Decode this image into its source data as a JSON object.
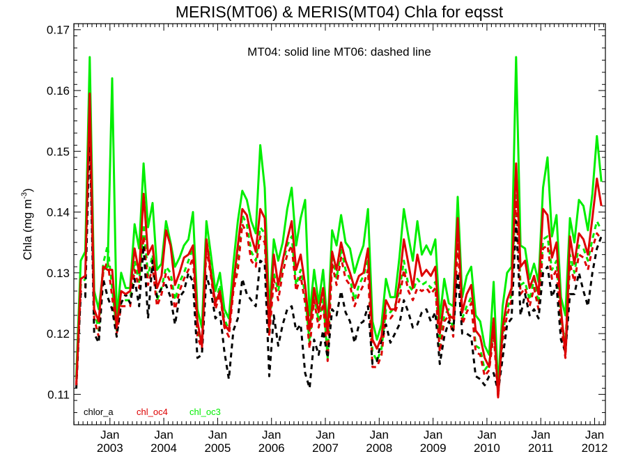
{
  "chart_data": {
    "type": "line",
    "title": "MERIS(MT06) & MERIS(MT04)  Chla for eqsst",
    "xlabel": "",
    "ylabel": "Chla (mg m",
    "ylabel_sup": "-3",
    "ylabel_close": ")",
    "annotation": "MT04: solid line   MT06: dashed line",
    "ylim": [
      0.105,
      0.171
    ],
    "yticks": [
      0.11,
      0.12,
      0.13,
      0.14,
      0.15,
      0.16,
      0.17
    ],
    "ytick_labels": [
      "0.11",
      "0.12",
      "0.13",
      "0.14",
      "0.15",
      "0.16",
      "0.17"
    ],
    "xlim": [
      2002.33,
      2012.2
    ],
    "xticks": [
      {
        "x": 2003.0,
        "month": "Jan",
        "year": "2003"
      },
      {
        "x": 2004.0,
        "month": "Jan",
        "year": "2004"
      },
      {
        "x": 2005.0,
        "month": "Jan",
        "year": "2005"
      },
      {
        "x": 2006.0,
        "month": "Jan",
        "year": "2006"
      },
      {
        "x": 2007.0,
        "month": "Jan",
        "year": "2007"
      },
      {
        "x": 2008.0,
        "month": "Jan",
        "year": "2008"
      },
      {
        "x": 2009.0,
        "month": "Jan",
        "year": "2009"
      },
      {
        "x": 2010.0,
        "month": "Jan",
        "year": "2010"
      },
      {
        "x": 2011.0,
        "month": "Jan",
        "year": "2011"
      },
      {
        "x": 2012.0,
        "month": "Jan",
        "year": "2012"
      }
    ],
    "x": [
      2002.375,
      2002.458,
      2002.542,
      2002.625,
      2002.708,
      2002.792,
      2002.875,
      2002.958,
      2003.042,
      2003.125,
      2003.208,
      2003.292,
      2003.375,
      2003.458,
      2003.542,
      2003.625,
      2003.708,
      2003.792,
      2003.875,
      2003.958,
      2004.042,
      2004.125,
      2004.208,
      2004.292,
      2004.375,
      2004.458,
      2004.542,
      2004.625,
      2004.708,
      2004.792,
      2004.875,
      2004.958,
      2005.042,
      2005.125,
      2005.208,
      2005.292,
      2005.375,
      2005.458,
      2005.542,
      2005.625,
      2005.708,
      2005.792,
      2005.875,
      2005.958,
      2006.042,
      2006.125,
      2006.208,
      2006.292,
      2006.375,
      2006.458,
      2006.542,
      2006.625,
      2006.708,
      2006.792,
      2006.875,
      2006.958,
      2007.042,
      2007.125,
      2007.208,
      2007.292,
      2007.375,
      2007.458,
      2007.542,
      2007.625,
      2007.708,
      2007.792,
      2007.875,
      2007.958,
      2008.042,
      2008.125,
      2008.208,
      2008.292,
      2008.375,
      2008.458,
      2008.542,
      2008.625,
      2008.708,
      2008.792,
      2008.875,
      2008.958,
      2009.042,
      2009.125,
      2009.208,
      2009.292,
      2009.375,
      2009.458,
      2009.542,
      2009.625,
      2009.708,
      2009.792,
      2009.875,
      2009.958,
      2010.042,
      2010.125,
      2010.208,
      2010.292,
      2010.375,
      2010.458,
      2010.542,
      2010.625,
      2010.708,
      2010.792,
      2010.875,
      2010.958,
      2011.042,
      2011.125,
      2011.208,
      2011.292,
      2011.375,
      2011.458,
      2011.542,
      2011.625,
      2011.708,
      2011.792,
      2011.875,
      2011.958,
      2012.042,
      2012.125
    ],
    "series": [
      {
        "name": "chl_oc3",
        "line": "solid",
        "color": "#00ee00",
        "values": [
          0.113,
          0.132,
          0.1335,
          0.1655,
          0.127,
          0.124,
          0.1305,
          0.131,
          0.162,
          0.1225,
          0.13,
          0.1275,
          0.1275,
          0.138,
          0.134,
          0.148,
          0.1375,
          0.1415,
          0.1305,
          0.1315,
          0.1385,
          0.135,
          0.131,
          0.1325,
          0.1345,
          0.1355,
          0.14,
          0.124,
          0.121,
          0.1385,
          0.133,
          0.127,
          0.13,
          0.124,
          0.1225,
          0.1315,
          0.1385,
          0.1435,
          0.142,
          0.1385,
          0.1365,
          0.151,
          0.144,
          0.1235,
          0.1355,
          0.132,
          0.135,
          0.1405,
          0.144,
          0.1345,
          0.139,
          0.142,
          0.123,
          0.1305,
          0.125,
          0.1305,
          0.121,
          0.137,
          0.1345,
          0.1395,
          0.135,
          0.134,
          0.13,
          0.1325,
          0.1345,
          0.1405,
          0.122,
          0.119,
          0.1215,
          0.129,
          0.126,
          0.126,
          0.1325,
          0.1405,
          0.136,
          0.132,
          0.1385,
          0.133,
          0.1345,
          0.133,
          0.1355,
          0.1225,
          0.129,
          0.125,
          0.1245,
          0.1425,
          0.126,
          0.1295,
          0.131,
          0.123,
          0.122,
          0.118,
          0.1165,
          0.1285,
          0.111,
          0.1245,
          0.13,
          0.131,
          0.1655,
          0.1345,
          0.134,
          0.129,
          0.1315,
          0.1285,
          0.144,
          0.149,
          0.136,
          0.1395,
          0.126,
          0.123,
          0.139,
          0.135,
          0.142,
          0.141,
          0.137,
          0.143,
          0.1525,
          0.145
        ]
      },
      {
        "name": "chl_oc4",
        "line": "solid",
        "color": "#dd0000",
        "values": [
          0.1115,
          0.129,
          0.1295,
          0.1595,
          0.124,
          0.122,
          0.131,
          0.1305,
          0.1305,
          0.121,
          0.127,
          0.1265,
          0.127,
          0.134,
          0.13,
          0.143,
          0.133,
          0.1345,
          0.1275,
          0.1295,
          0.137,
          0.1345,
          0.128,
          0.13,
          0.1325,
          0.133,
          0.1345,
          0.122,
          0.118,
          0.1355,
          0.13,
          0.125,
          0.127,
          0.1215,
          0.1205,
          0.128,
          0.1345,
          0.1405,
          0.1395,
          0.136,
          0.1335,
          0.1405,
          0.139,
          0.121,
          0.133,
          0.128,
          0.132,
          0.1355,
          0.1385,
          0.1305,
          0.133,
          0.128,
          0.1205,
          0.1275,
          0.1235,
          0.1275,
          0.12,
          0.1335,
          0.1305,
          0.135,
          0.132,
          0.13,
          0.1275,
          0.1295,
          0.13,
          0.134,
          0.119,
          0.1175,
          0.1195,
          0.1255,
          0.124,
          0.124,
          0.1285,
          0.1355,
          0.1315,
          0.1275,
          0.133,
          0.1295,
          0.1305,
          0.1295,
          0.131,
          0.12,
          0.1255,
          0.123,
          0.1225,
          0.139,
          0.1235,
          0.1265,
          0.128,
          0.1205,
          0.1195,
          0.116,
          0.1145,
          0.1225,
          0.1095,
          0.121,
          0.1255,
          0.1275,
          0.148,
          0.131,
          0.132,
          0.1275,
          0.1295,
          0.1265,
          0.1405,
          0.1395,
          0.1325,
          0.135,
          0.124,
          0.1165,
          0.136,
          0.1315,
          0.1365,
          0.1355,
          0.133,
          0.139,
          0.1455,
          0.141
        ]
      },
      {
        "name": "chl_oc3 (MT06)",
        "line": "dashed",
        "color": "#00ee00",
        "values": [
          0.1125,
          0.128,
          0.129,
          0.156,
          0.124,
          0.1205,
          0.1315,
          0.1345,
          0.1275,
          0.1205,
          0.1255,
          0.1255,
          0.1255,
          0.132,
          0.1285,
          0.138,
          0.1295,
          0.133,
          0.1255,
          0.1275,
          0.131,
          0.13,
          0.1255,
          0.1285,
          0.13,
          0.132,
          0.134,
          0.1205,
          0.1185,
          0.1355,
          0.131,
          0.125,
          0.128,
          0.1225,
          0.1205,
          0.1285,
          0.132,
          0.1395,
          0.138,
          0.1335,
          0.132,
          0.1375,
          0.1365,
          0.1205,
          0.13,
          0.127,
          0.1315,
          0.1345,
          0.136,
          0.128,
          0.1305,
          0.1265,
          0.1185,
          0.1265,
          0.122,
          0.126,
          0.116,
          0.133,
          0.129,
          0.134,
          0.1305,
          0.129,
          0.1255,
          0.128,
          0.1295,
          0.132,
          0.117,
          0.1155,
          0.1175,
          0.124,
          0.1235,
          0.1245,
          0.127,
          0.132,
          0.128,
          0.127,
          0.129,
          0.128,
          0.1285,
          0.1275,
          0.1285,
          0.118,
          0.123,
          0.124,
          0.1205,
          0.1365,
          0.1225,
          0.1245,
          0.126,
          0.118,
          0.1175,
          0.114,
          0.115,
          0.121,
          0.11,
          0.12,
          0.124,
          0.1265,
          0.144,
          0.128,
          0.1285,
          0.1255,
          0.129,
          0.125,
          0.1355,
          0.136,
          0.1305,
          0.132,
          0.1225,
          0.1185,
          0.133,
          0.13,
          0.1345,
          0.134,
          0.132,
          0.1355,
          0.1385,
          0.137
        ]
      },
      {
        "name": "chl_oc4 (MT06)",
        "line": "dashed",
        "color": "#dd0000",
        "values": [
          0.1115,
          0.127,
          0.1275,
          0.1535,
          0.1225,
          0.1195,
          0.13,
          0.132,
          0.126,
          0.12,
          0.1245,
          0.1245,
          0.1245,
          0.1305,
          0.1275,
          0.136,
          0.128,
          0.131,
          0.1245,
          0.1265,
          0.13,
          0.1285,
          0.124,
          0.127,
          0.129,
          0.1305,
          0.1325,
          0.1195,
          0.1175,
          0.134,
          0.1295,
          0.124,
          0.1265,
          0.121,
          0.1195,
          0.127,
          0.1305,
          0.138,
          0.1365,
          0.132,
          0.131,
          0.136,
          0.135,
          0.1195,
          0.129,
          0.1255,
          0.13,
          0.133,
          0.1345,
          0.127,
          0.1295,
          0.125,
          0.1175,
          0.1255,
          0.121,
          0.125,
          0.1155,
          0.1315,
          0.128,
          0.1325,
          0.129,
          0.128,
          0.1245,
          0.1265,
          0.128,
          0.1305,
          0.1145,
          0.1145,
          0.1165,
          0.123,
          0.1225,
          0.1235,
          0.1255,
          0.1305,
          0.127,
          0.1255,
          0.1275,
          0.127,
          0.1275,
          0.1265,
          0.1275,
          0.117,
          0.122,
          0.123,
          0.1195,
          0.135,
          0.1215,
          0.1235,
          0.125,
          0.117,
          0.1165,
          0.113,
          0.114,
          0.12,
          0.1095,
          0.119,
          0.123,
          0.1255,
          0.142,
          0.1265,
          0.1275,
          0.1245,
          0.1275,
          0.124,
          0.134,
          0.1345,
          0.129,
          0.1305,
          0.1215,
          0.116,
          0.1315,
          0.1285,
          0.133,
          0.1325,
          0.1305,
          0.134,
          0.1365,
          0.1355
        ]
      },
      {
        "name": "chlor_a (MT06)",
        "line": "dashed",
        "color": "#000000",
        "values": [
          0.111,
          0.1265,
          0.126,
          0.154,
          0.12,
          0.1185,
          0.129,
          0.126,
          0.124,
          0.1195,
          0.125,
          0.1265,
          0.125,
          0.129,
          0.1245,
          0.1345,
          0.1225,
          0.132,
          0.126,
          0.1275,
          0.128,
          0.126,
          0.1215,
          0.126,
          0.127,
          0.13,
          0.1285,
          0.116,
          0.1165,
          0.1295,
          0.127,
          0.1225,
          0.1235,
          0.117,
          0.1125,
          0.1205,
          0.1225,
          0.129,
          0.1265,
          0.1255,
          0.1245,
          0.132,
          0.1315,
          0.113,
          0.123,
          0.118,
          0.1215,
          0.124,
          0.1245,
          0.1205,
          0.1215,
          0.1135,
          0.111,
          0.119,
          0.1165,
          0.1205,
          0.116,
          0.124,
          0.123,
          0.127,
          0.1235,
          0.122,
          0.1185,
          0.1215,
          0.122,
          0.1245,
          0.115,
          0.1155,
          0.119,
          0.1215,
          0.1185,
          0.12,
          0.1215,
          0.1255,
          0.1235,
          0.121,
          0.1215,
          0.1235,
          0.124,
          0.122,
          0.1235,
          0.115,
          0.1195,
          0.122,
          0.1205,
          0.13,
          0.12,
          0.12,
          0.1195,
          0.113,
          0.1125,
          0.1115,
          0.113,
          0.1135,
          0.1105,
          0.116,
          0.1215,
          0.1225,
          0.1385,
          0.123,
          0.1265,
          0.123,
          0.124,
          0.1225,
          0.13,
          0.131,
          0.126,
          0.128,
          0.119,
          0.117,
          0.1265,
          0.1265,
          0.13,
          0.127,
          0.1245,
          0.13,
          0.134,
          0.136
        ]
      }
    ],
    "legend": [
      {
        "label": "chlor_a",
        "color": "#000000"
      },
      {
        "label": "chl_oc4",
        "color": "#dd0000"
      },
      {
        "label": "chl_oc3",
        "color": "#00ee00"
      }
    ],
    "legend_position": "bottom-left",
    "grid": false
  }
}
